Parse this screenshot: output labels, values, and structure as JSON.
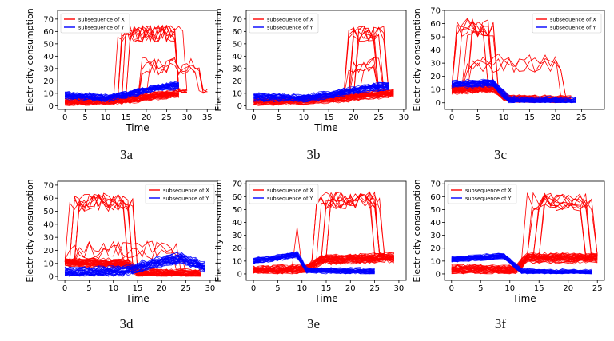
{
  "chart_data": [
    {
      "id": "3a",
      "caption": "3a",
      "type": "line",
      "xlabel": "Time",
      "ylabel": "Electricity consumption",
      "xlim": [
        -1.8,
        37.5
      ],
      "ylim": [
        -3,
        77
      ],
      "xticks": [
        0,
        5,
        10,
        15,
        20,
        25,
        30,
        35
      ],
      "yticks": [
        0,
        10,
        20,
        30,
        40,
        50,
        60,
        70
      ],
      "legend_position": "top-left",
      "series": [
        {
          "name": "subsequence of X",
          "color": "#ff0000",
          "n_lines": 40,
          "x_end": 28,
          "base_segments": [
            [
              0,
              3
            ],
            [
              10,
              4
            ],
            [
              16,
              5
            ],
            [
              22,
              8
            ],
            [
              28,
              10
            ]
          ],
          "noise": 2.0,
          "spikes": [
            {
              "x_start": 12,
              "x_end": 30,
              "level": 58,
              "count": 9
            },
            {
              "x_start": 18,
              "x_end": 35,
              "level": 32,
              "count": 4
            }
          ]
        },
        {
          "name": "subsequence of Y",
          "color": "#0000ff",
          "n_lines": 30,
          "x_end": 28,
          "base_segments": [
            [
              0,
              8
            ],
            [
              10,
              6
            ],
            [
              16,
              9
            ],
            [
              22,
              14
            ],
            [
              28,
              16
            ]
          ],
          "noise": 2.0,
          "spikes": []
        }
      ]
    },
    {
      "id": "3b",
      "caption": "3b",
      "type": "line",
      "xlabel": "Time",
      "ylabel": "Electricity consumption",
      "xlim": [
        -1.5,
        30.5
      ],
      "ylim": [
        -3,
        77
      ],
      "xticks": [
        0,
        5,
        10,
        15,
        20,
        25,
        30
      ],
      "yticks": [
        0,
        10,
        20,
        30,
        40,
        50,
        60,
        70
      ],
      "legend_position": "top-left",
      "series": [
        {
          "name": "subsequence of X",
          "color": "#ff0000",
          "n_lines": 40,
          "x_end": 28,
          "base_segments": [
            [
              0,
              3
            ],
            [
              10,
              4
            ],
            [
              16,
              5
            ],
            [
              22,
              8
            ],
            [
              28,
              10
            ]
          ],
          "noise": 2.0,
          "spikes": [
            {
              "x_start": 17,
              "x_end": 27,
              "level": 58,
              "count": 9
            },
            {
              "x_start": 18,
              "x_end": 26,
              "level": 32,
              "count": 4
            }
          ]
        },
        {
          "name": "subsequence of Y",
          "color": "#0000ff",
          "n_lines": 30,
          "x_end": 27,
          "base_segments": [
            [
              0,
              7
            ],
            [
              10,
              6
            ],
            [
              16,
              9
            ],
            [
              22,
              14
            ],
            [
              27,
              16
            ]
          ],
          "noise": 2.0,
          "spikes": []
        }
      ]
    },
    {
      "id": "3c",
      "caption": "3c",
      "type": "line",
      "xlabel": "",
      "ylabel": "Electricity consumption",
      "xlim": [
        -1.4,
        29.4
      ],
      "ylim": [
        -5,
        70
      ],
      "xticks": [
        0,
        5,
        10,
        15,
        20,
        25
      ],
      "yticks": [
        0,
        10,
        20,
        30,
        40,
        50,
        60,
        70
      ],
      "legend_position": "top-right",
      "series": [
        {
          "name": "subsequence of X",
          "color": "#ff0000",
          "n_lines": 40,
          "x_end": 23,
          "base_segments": [
            [
              0,
              10
            ],
            [
              8,
              11
            ],
            [
              11,
              3
            ],
            [
              23,
              2
            ]
          ],
          "noise": 2.0,
          "spikes": [
            {
              "x_start": 0,
              "x_end": 9,
              "level": 57,
              "count": 8
            },
            {
              "x_start": 0,
              "x_end": 23,
              "level": 30,
              "count": 3
            }
          ]
        },
        {
          "name": "subsequence of Y",
          "color": "#0000ff",
          "n_lines": 30,
          "x_end": 24,
          "base_segments": [
            [
              0,
              14
            ],
            [
              8,
              15
            ],
            [
              11,
              2
            ],
            [
              24,
              1
            ]
          ],
          "noise": 2.0,
          "spikes": []
        }
      ]
    },
    {
      "id": "3d",
      "caption": "3d",
      "type": "line",
      "xlabel": "Time",
      "ylabel": "Electricity consumption",
      "xlim": [
        -1.5,
        31.5
      ],
      "ylim": [
        -3,
        73
      ],
      "xticks": [
        0,
        5,
        10,
        15,
        20,
        25,
        30
      ],
      "yticks": [
        0,
        10,
        20,
        30,
        40,
        50,
        60,
        70
      ],
      "legend_position": "top-right",
      "series": [
        {
          "name": "subsequence of X",
          "color": "#ff0000",
          "n_lines": 40,
          "x_end": 28,
          "base_segments": [
            [
              0,
              11
            ],
            [
              13,
              10
            ],
            [
              15,
              3
            ],
            [
              28,
              2
            ]
          ],
          "noise": 2.0,
          "spikes": [
            {
              "x_start": 0,
              "x_end": 15,
              "level": 57,
              "count": 8
            },
            {
              "x_start": 0,
              "x_end": 25,
              "level": 20,
              "count": 3
            }
          ]
        },
        {
          "name": "subsequence of Y",
          "color": "#0000ff",
          "n_lines": 30,
          "x_end": 29,
          "base_segments": [
            [
              0,
              3
            ],
            [
              12,
              4
            ],
            [
              18,
              10
            ],
            [
              24,
              14
            ],
            [
              29,
              7
            ]
          ],
          "noise": 2.5,
          "spikes": []
        }
      ]
    },
    {
      "id": "3e",
      "caption": "3e",
      "type": "line",
      "xlabel": "Time",
      "ylabel": "Electricity consumption",
      "xlim": [
        -1.5,
        31.5
      ],
      "ylim": [
        -5,
        72
      ],
      "xticks": [
        0,
        5,
        10,
        15,
        20,
        25,
        30
      ],
      "yticks": [
        0,
        10,
        20,
        30,
        40,
        50,
        60,
        70
      ],
      "legend_position": "top-left",
      "series": [
        {
          "name": "subsequence of X",
          "color": "#ff0000",
          "n_lines": 40,
          "x_end": 29,
          "base_segments": [
            [
              0,
              3
            ],
            [
              11,
              4
            ],
            [
              14,
              11
            ],
            [
              29,
              13
            ]
          ],
          "noise": 2.5,
          "spikes": [
            {
              "x_start": 12,
              "x_end": 27,
              "level": 57,
              "count": 9
            },
            {
              "x_start": 6,
              "x_end": 11,
              "level": 40,
              "count": 1
            }
          ]
        },
        {
          "name": "subsequence of Y",
          "color": "#0000ff",
          "n_lines": 30,
          "x_end": 25,
          "base_segments": [
            [
              0,
              10
            ],
            [
              9,
              15
            ],
            [
              11,
              3
            ],
            [
              25,
              2
            ]
          ],
          "noise": 1.5,
          "spikes": []
        }
      ]
    },
    {
      "id": "3f",
      "caption": "3f",
      "type": "line",
      "xlabel": "Time",
      "ylabel": "Electricity consumption",
      "xlim": [
        -1.2,
        26.2
      ],
      "ylim": [
        -5,
        72
      ],
      "xticks": [
        0,
        5,
        10,
        15,
        20,
        25
      ],
      "yticks": [
        0,
        10,
        20,
        30,
        40,
        50,
        60,
        70
      ],
      "legend_position": "top-left",
      "series": [
        {
          "name": "subsequence of X",
          "color": "#ff0000",
          "n_lines": 40,
          "x_end": 25,
          "base_segments": [
            [
              0,
              3
            ],
            [
              11,
              3
            ],
            [
              13,
              12
            ],
            [
              25,
              12
            ]
          ],
          "noise": 2.5,
          "spikes": [
            {
              "x_start": 12,
              "x_end": 25,
              "level": 56,
              "count": 9
            }
          ]
        },
        {
          "name": "subsequence of Y",
          "color": "#0000ff",
          "n_lines": 30,
          "x_end": 24,
          "base_segments": [
            [
              0,
              11
            ],
            [
              9,
              14
            ],
            [
              12,
              2
            ],
            [
              24,
              1
            ]
          ],
          "noise": 1.5,
          "spikes": []
        }
      ]
    }
  ]
}
